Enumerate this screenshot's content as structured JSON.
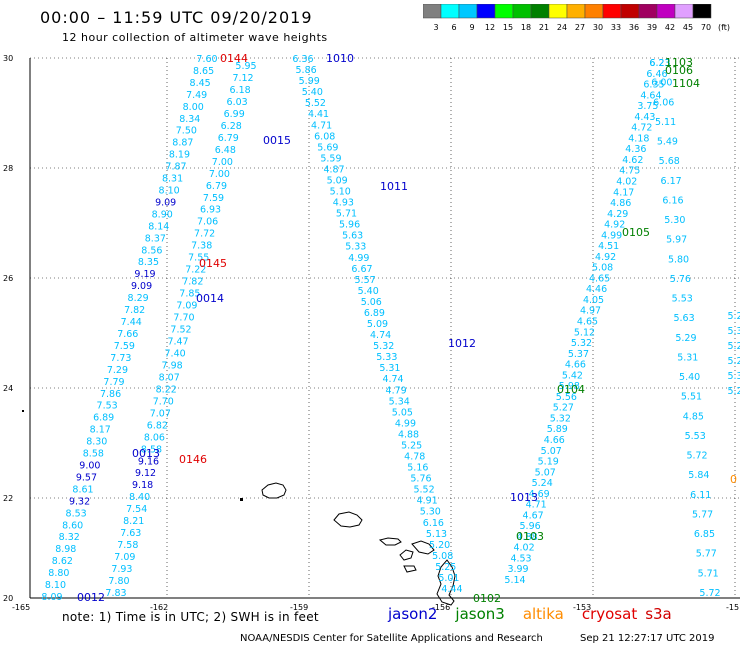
{
  "title": "00:00 – 11:59 UTC 09/20/2019",
  "subtitle": "12 hour collection of altimeter wave heights",
  "legend": {
    "colors": [
      "#808080",
      "#00ffff",
      "#00c8ff",
      "#0000ff",
      "#00ff00",
      "#00c000",
      "#008000",
      "#ffff00",
      "#ffb000",
      "#ff8000",
      "#ff0000",
      "#c00000",
      "#a00060",
      "#c000c0",
      "#e0a0ff",
      "#000000"
    ],
    "labels": [
      "3",
      "6",
      "9",
      "12",
      "15",
      "18",
      "21",
      "24",
      "27",
      "30",
      "33",
      "36",
      "39",
      "42",
      "45",
      "70",
      "(ft)"
    ]
  },
  "axes": {
    "x_ticks": [
      "-165",
      "-162",
      "-159",
      "-156",
      "-153",
      "-15"
    ],
    "y_ticks": [
      "30",
      "28",
      "26",
      "24",
      "22",
      "20"
    ]
  },
  "satellite_colors": {
    "jason2": "#0000cc",
    "jason3": "#008000",
    "altika": "#ff8c00",
    "cryosat": "#e00000",
    "s3a": "#d00000"
  },
  "time_labels": [
    {
      "text": "0144",
      "sat": "cryosat"
    },
    {
      "text": "1010",
      "sat": "jason2"
    },
    {
      "text": "0015",
      "sat": "jason2"
    },
    {
      "text": "1011",
      "sat": "jason2"
    },
    {
      "text": "0145",
      "sat": "cryosat"
    },
    {
      "text": "0014",
      "sat": "jason2"
    },
    {
      "text": "1012",
      "sat": "jason2"
    },
    {
      "text": "0104",
      "sat": "jason3"
    },
    {
      "text": "0013",
      "sat": "jason2"
    },
    {
      "text": "0146",
      "sat": "cryosat"
    },
    {
      "text": "1013",
      "sat": "jason2"
    },
    {
      "text": "0103",
      "sat": "jason3"
    },
    {
      "text": "0012",
      "sat": "jason2"
    },
    {
      "text": "0102",
      "sat": "jason3"
    },
    {
      "text": "1103",
      "sat": "jason3"
    },
    {
      "text": "0106",
      "sat": "jason3"
    },
    {
      "text": "1104",
      "sat": "jason3"
    },
    {
      "text": "0105",
      "sat": "jason3"
    },
    {
      "text": "0",
      "sat": "altika"
    }
  ],
  "tracks": [
    {
      "name": "track-a",
      "color": "#00bfff",
      "values": [
        "7.60",
        "8.65",
        "8.45",
        "7.49",
        "8.00",
        "8.34",
        "7.50",
        "8.87",
        "8.19",
        "7.87",
        "8.31",
        "8.10",
        "9.09",
        "8.90",
        "8.14",
        "8.37",
        "8.56",
        "8.35",
        "9.19",
        "9.09",
        "8.29",
        "7.82",
        "7.44",
        "7.66",
        "7.59",
        "7.73",
        "7.29",
        "7.79",
        "7.86",
        "7.53",
        "6.89",
        "8.17",
        "8.30",
        "8.58",
        "9.00",
        "9.57",
        "8.61",
        "9.32",
        "8.53",
        "8.60",
        "8.32",
        "8.98",
        "8.62",
        "8.80",
        "8.10",
        "8.09"
      ]
    },
    {
      "name": "track-b",
      "color": "#00bfff",
      "values": [
        "5.95",
        "7.12",
        "6.18",
        "6.03",
        "6.99",
        "6.28",
        "6.79",
        "6.48",
        "7.00",
        "7.00",
        "6.79",
        "7.59",
        "6.93",
        "7.06",
        "7.72",
        "7.38",
        "7.55",
        "7.22",
        "7.82",
        "7.85",
        "7.09",
        "7.70",
        "7.52",
        "7.47",
        "7.40",
        "7.98",
        "8.07",
        "8.22",
        "7.70",
        "7.07",
        "6.82",
        "8.06",
        "8.58",
        "9.16",
        "9.12",
        "9.18",
        "8.40",
        "7.54",
        "8.21",
        "7.63",
        "7.58",
        "7.09",
        "7.93",
        "7.80",
        "7.83"
      ]
    },
    {
      "name": "track-c",
      "color": "#00bfff",
      "values": [
        "6.36",
        "5.86",
        "5.99",
        "5.40",
        "5.52",
        "4.41",
        "4.71",
        "6.08",
        "5.69",
        "5.59",
        "4.87",
        "5.09",
        "5.10",
        "4.93",
        "5.71",
        "5.96",
        "5.63",
        "5.33",
        "4.99",
        "6.67",
        "5.57",
        "5.40",
        "5.06",
        "6.89",
        "5.09",
        "4.74",
        "5.32",
        "5.33",
        "5.31",
        "4.74",
        "4.79",
        "5.34",
        "5.05",
        "4.99",
        "4.88",
        "5.25",
        "4.78",
        "5.16",
        "5.76",
        "5.52",
        "4.91",
        "5.30",
        "6.16",
        "5.13",
        "5.20",
        "5.08",
        "5.25",
        "5.01",
        "4.44"
      ]
    },
    {
      "name": "track-d",
      "color": "#00bfff",
      "values": [
        "6.23",
        "6.46",
        "6.35",
        "4.64",
        "3.75",
        "4.43",
        "4.72",
        "4.18",
        "4.36",
        "4.62",
        "4.75",
        "4.02",
        "4.17",
        "4.86",
        "4.29",
        "4.92",
        "4.99",
        "4.51",
        "4.92",
        "5.08",
        "4.65",
        "4.46",
        "4.05",
        "4.97",
        "4.65",
        "5.12",
        "5.32",
        "5.37",
        "4.66",
        "5.42",
        "5.98",
        "5.56",
        "5.27",
        "5.32",
        "5.89",
        "4.66",
        "5.07",
        "5.19",
        "5.07",
        "5.24",
        "4.69",
        "4.71",
        "4.67",
        "5.96",
        "4.88",
        "4.02",
        "4.53",
        "3.99",
        "5.14"
      ]
    },
    {
      "name": "track-e",
      "color": "#00bfff",
      "values": [
        "6.23",
        "6.00",
        "6.06",
        "5.11",
        "5.49",
        "5.68",
        "6.17",
        "6.16",
        "5.30",
        "5.97",
        "5.80",
        "5.76",
        "5.53",
        "5.63",
        "5.29",
        "5.31",
        "5.40",
        "5.51",
        "4.85",
        "5.53",
        "5.72",
        "5.84",
        "6.11",
        "5.77",
        "6.85",
        "5.77",
        "5.71",
        "5.72"
      ]
    },
    {
      "name": "track-f",
      "color": "#00bfff",
      "values": [
        "5.2",
        "5.3",
        "5.2",
        "5.2",
        "5.3",
        "5.2"
      ]
    }
  ],
  "footnote": "note: 1) Time is in UTC; 2) SWH is in feet",
  "satellites": [
    {
      "key": "jason2",
      "label": "jason2"
    },
    {
      "key": "jason3",
      "label": "jason3"
    },
    {
      "key": "altika",
      "label": "altika"
    },
    {
      "key": "cryosat",
      "label": "cryosat"
    },
    {
      "key": "s3a",
      "label": "s3a"
    }
  ],
  "credit": "NOAA/NESDIS Center for Satellite Applications and Research",
  "generated": "Sep 21 12:27:17 UTC 2019"
}
